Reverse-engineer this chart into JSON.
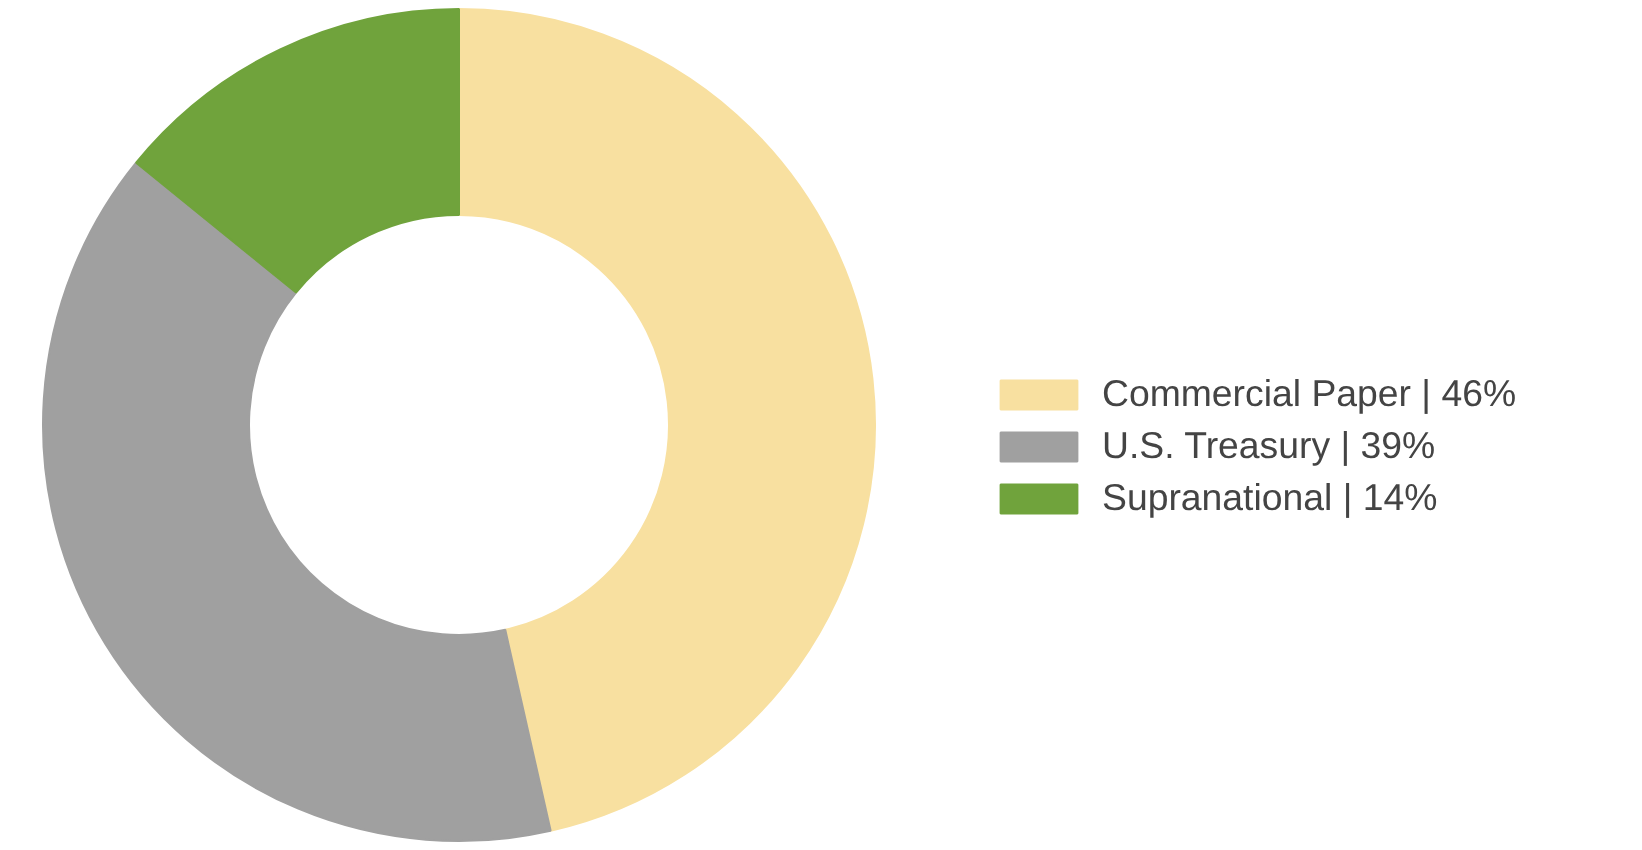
{
  "chart_data": {
    "type": "donut",
    "categories": [
      "Commercial Paper | 46%",
      "U.S. Treasury | 39%",
      "Supranational | 14%"
    ],
    "values": [
      46,
      39,
      14
    ],
    "colors": [
      "#f8e0a0",
      "#a0a0a0",
      "#70a33c"
    ],
    "legend": "right"
  }
}
